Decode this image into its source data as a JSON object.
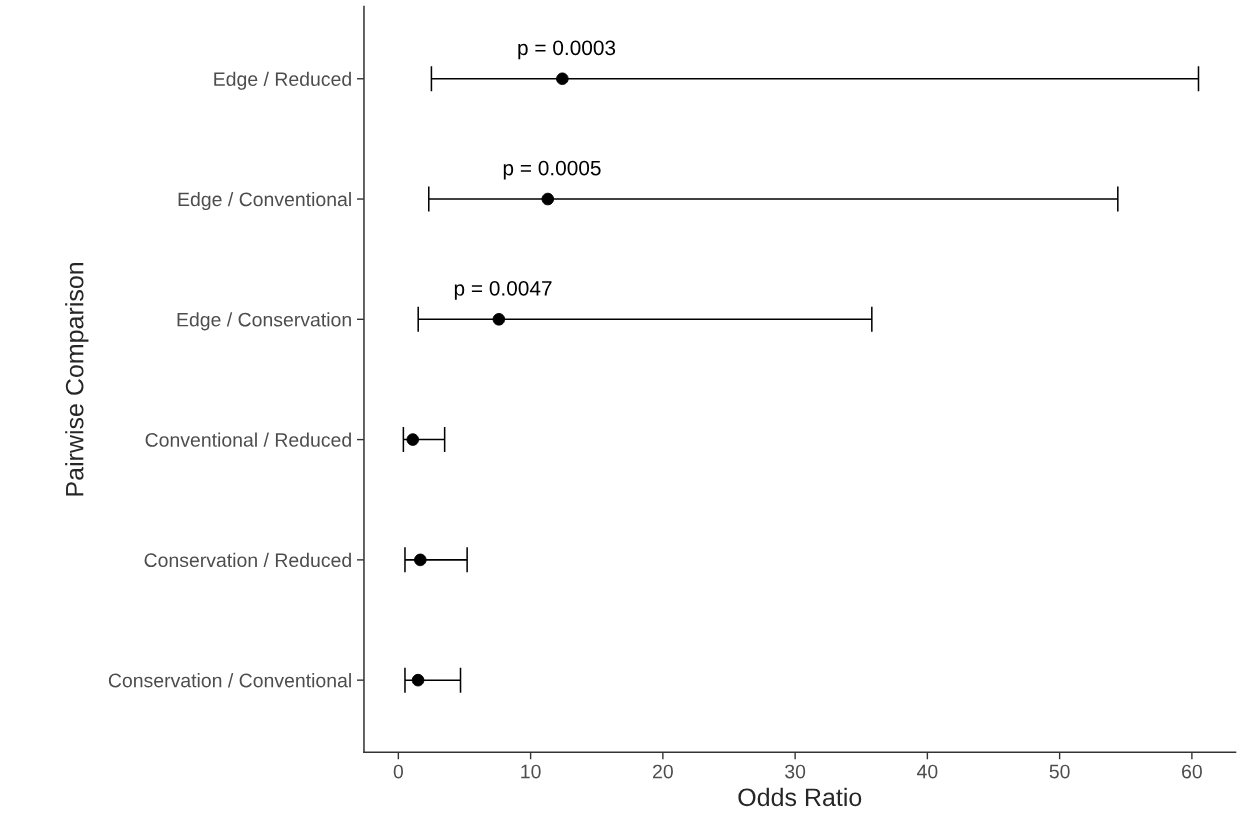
{
  "chart_data": {
    "type": "scatter",
    "orientation": "horizontal",
    "xlabel": "Odds Ratio",
    "ylabel": "Pairwise Comparison",
    "categories": [
      "Edge / Reduced",
      "Edge / Conventional",
      "Edge / Conservation",
      "Conventional / Reduced",
      "Conservation / Reduced",
      "Conservation / Conventional"
    ],
    "values": [
      12.4,
      11.3,
      7.6,
      1.09,
      1.66,
      1.49
    ],
    "errors": [
      [
        2.5,
        60.5
      ],
      [
        2.3,
        54.4
      ],
      [
        1.5,
        35.8
      ],
      [
        0.38,
        3.5
      ],
      [
        0.5,
        5.2
      ],
      [
        0.5,
        4.7
      ]
    ],
    "color": "#000000",
    "marker": "circle",
    "xlim": [
      -2.6,
      63.3
    ],
    "xticks": [
      0,
      10,
      20,
      30,
      40,
      50,
      60
    ],
    "grid": false,
    "legend": false,
    "annotations": [
      "p = 0.0003",
      "p = 0.0005",
      "p = 0.0047"
    ]
  }
}
